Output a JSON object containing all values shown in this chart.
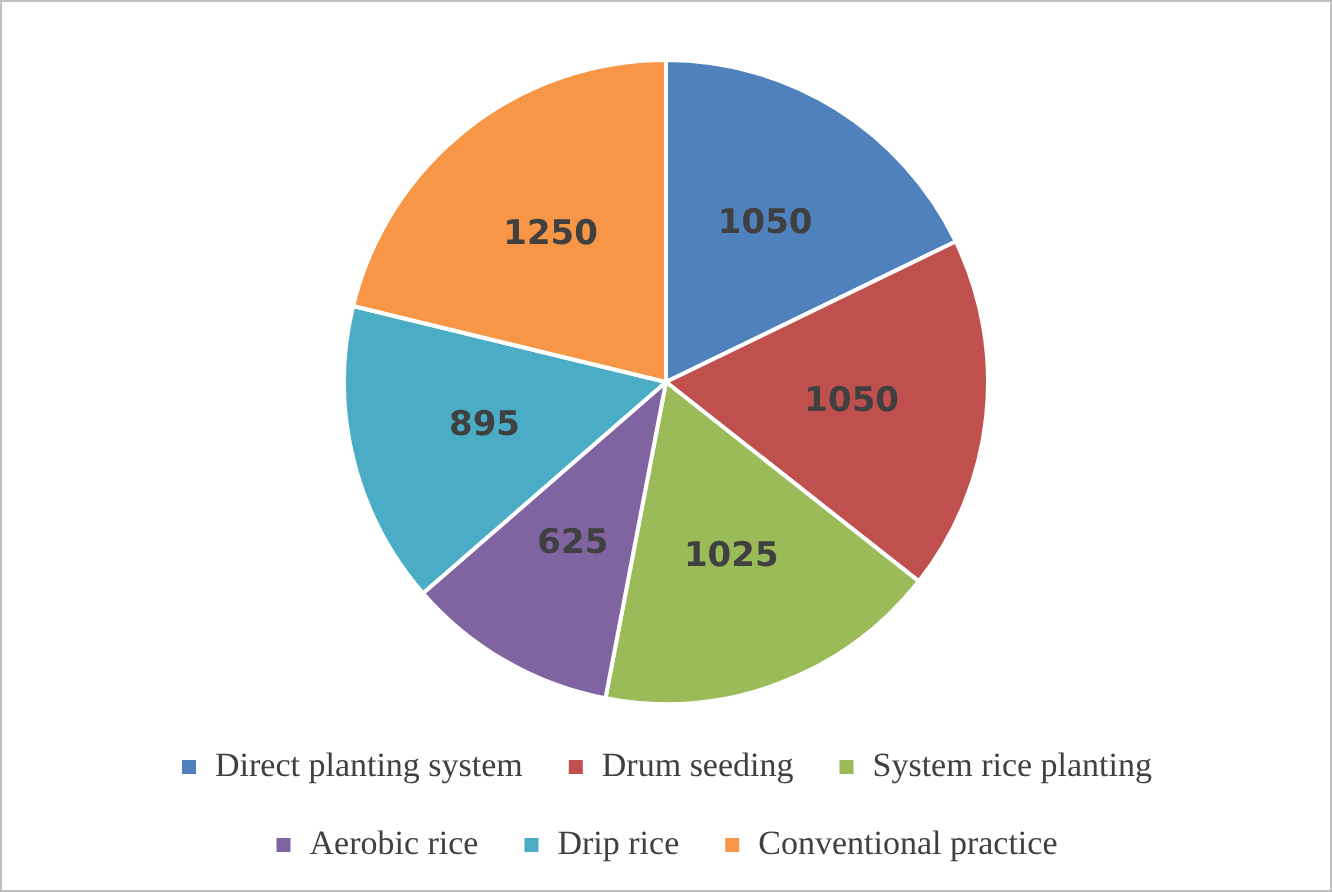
{
  "chart_data": {
    "type": "pie",
    "categories": [
      "Direct planting system",
      "Drum seeding",
      "System rice planting",
      "Aerobic rice",
      "Drip rice",
      "Conventional practice"
    ],
    "values": [
      1050,
      1050,
      1025,
      625,
      895,
      1250
    ],
    "colors": [
      "#4f81bd",
      "#c0504d",
      "#9bbb59",
      "#8064a2",
      "#4bacc6",
      "#f79646"
    ],
    "data_labels": true,
    "legend": "bottom"
  }
}
